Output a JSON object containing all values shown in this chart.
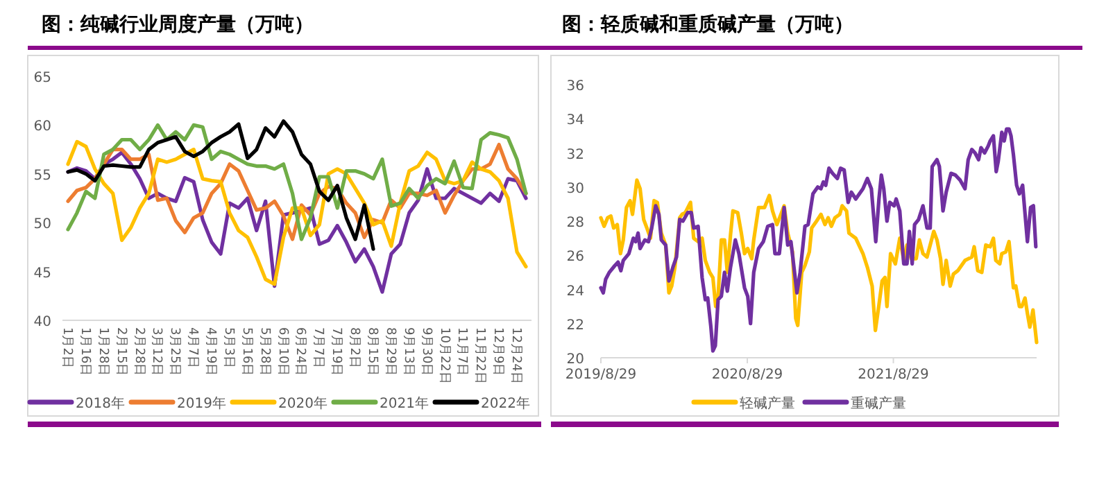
{
  "chart_data": [
    {
      "type": "line",
      "title": "图：纯碱行业周度产量（万吨）",
      "legend": "bottom",
      "ylim": [
        40,
        65
      ],
      "yticks": [
        40,
        45,
        50,
        55,
        60,
        65
      ],
      "categories": [
        "1月2日",
        null,
        "1月16日",
        null,
        "1月28日",
        null,
        "2月15日",
        null,
        "2月28日",
        null,
        "3月12日",
        null,
        "3月25日",
        null,
        "4月7日",
        null,
        "4月19日",
        null,
        "5月3日",
        null,
        "5月16日",
        null,
        "5月28日",
        null,
        "6月10日",
        null,
        "6月24日",
        null,
        "7月7日",
        null,
        "7月19日",
        null,
        "8月2日",
        null,
        "8月15日",
        null,
        "8月29日",
        null,
        "9月13日",
        null,
        "9月30日",
        null,
        "10月22日",
        null,
        "11月7日",
        null,
        "11月22日",
        null,
        "12月9日",
        null,
        "12月24日",
        null
      ],
      "series": [
        {
          "name": "2018年",
          "color": "#7030a0",
          "values": [
            55.2,
            55.6,
            55.3,
            54.5,
            56,
            56.5,
            57.2,
            56,
            54.5,
            52.5,
            53,
            52.5,
            52.2,
            54.6,
            54.2,
            50.3,
            48,
            46.8,
            52,
            51.5,
            52.5,
            49.2,
            52.2,
            43.5,
            50.8,
            51,
            51.2,
            51.5,
            47.8,
            48.2,
            49.7,
            48,
            46,
            47.3,
            45.5,
            42.9,
            46.8,
            47.8,
            51,
            52.3,
            55.5,
            52.5,
            52.5,
            53.5,
            53,
            52.5,
            52,
            53,
            52.2,
            54.5,
            54.3,
            52.5
          ]
        },
        {
          "name": "2019年",
          "color": "#ed7d31",
          "values": [
            52.2,
            53.3,
            53.6,
            54.5,
            56,
            57.5,
            57.5,
            56.5,
            56.5,
            57,
            52.3,
            52.5,
            50.2,
            49,
            50.5,
            51,
            53,
            54,
            56,
            55.3,
            53.3,
            51.3,
            51.5,
            52.2,
            50.7,
            48.3,
            51.8,
            50.8,
            53,
            53.7,
            53.5,
            52,
            51,
            48.5,
            50.3,
            50,
            52.3,
            51.5,
            53,
            53,
            52.8,
            53.3,
            51,
            52.8,
            54.3,
            55.5,
            55.5,
            56,
            58,
            55.5,
            54.5,
            53
          ]
        },
        {
          "name": "2020年",
          "color": "#ffc000",
          "values": [
            56,
            58.3,
            57.8,
            55.5,
            54,
            53,
            48.2,
            49.5,
            51.5,
            53,
            56.5,
            56.2,
            56.5,
            57,
            57.5,
            54.5,
            54.3,
            54.2,
            51,
            49.2,
            48.5,
            46.5,
            44.2,
            43.7,
            48.5,
            51.5,
            51.5,
            48.7,
            49.8,
            55,
            55.5,
            55,
            53.5,
            52,
            49.8,
            50.2,
            47.6,
            52,
            55.3,
            55.8,
            57.2,
            56.5,
            54.3,
            54,
            54.3,
            56.2,
            55.5,
            55.2,
            54.3,
            52.5,
            47,
            45.5
          ]
        },
        {
          "name": "2021年",
          "color": "#70ad47",
          "values": [
            49.3,
            51,
            53.2,
            52.5,
            57,
            57.5,
            58.5,
            58.5,
            57.5,
            58.5,
            60,
            58.5,
            59.3,
            58.5,
            60,
            59.8,
            56.5,
            57.3,
            57,
            56.5,
            56,
            55.8,
            55.8,
            55.5,
            56,
            53,
            48.3,
            50.5,
            54.7,
            54.7,
            51.5,
            55.3,
            55.3,
            55,
            54.5,
            56.5,
            51.7,
            52,
            53.5,
            52.5,
            53.8,
            54.5,
            54,
            56.3,
            53.6,
            53.5,
            58.5,
            59.2,
            59,
            58.7,
            56.5,
            53
          ]
        },
        {
          "name": "2022年",
          "color": "#000000",
          "values": [
            55.2,
            55.4,
            55.0,
            54.3,
            55.8,
            55.9,
            55.8,
            55.7,
            55.7,
            57.5,
            58.2,
            58.5,
            58.8,
            57.3,
            56.8,
            57.3,
            58.2,
            58.8,
            59.3,
            60.1,
            56.6,
            57.5,
            59.7,
            58.8,
            60.4,
            59.3,
            57,
            56,
            53.2,
            52.3,
            53.8,
            50.5,
            48.3,
            51.8,
            47.3,
            null,
            null,
            null,
            null,
            null,
            null,
            null,
            null,
            null,
            null,
            null,
            null,
            null,
            null,
            null,
            null,
            null
          ]
        }
      ]
    },
    {
      "type": "line",
      "title": "图：轻质碱和重质碱产量（万吨）",
      "legend": "bottom",
      "ylim": [
        20,
        36
      ],
      "yticks": [
        20,
        22,
        24,
        26,
        28,
        30,
        32,
        34,
        36
      ],
      "xlim": [
        "2019-08-29",
        "2022-08-22"
      ],
      "xticks": [
        {
          "value": "2019-08-29",
          "label": "2019/8/29"
        },
        {
          "value": "2020-08-29",
          "label": "2020/8/29"
        },
        {
          "value": "2021-08-29",
          "label": "2021/8/29"
        }
      ],
      "series": [
        {
          "name": "轻碱产量",
          "color": "#ffc000",
          "x": [
            "2019-08-29",
            "2019-09-06",
            "2019-09-15",
            "2019-09-23",
            "2019-09-30",
            "2019-10-09",
            "2019-10-17",
            "2019-10-24",
            "2019-11-01",
            "2019-11-10",
            "2019-11-16",
            "2019-11-27",
            "2019-12-05",
            "2019-12-14",
            "2019-12-22",
            "2019-12-31",
            "2020-01-09",
            "2020-01-17",
            "2020-01-27",
            "2020-02-07",
            "2020-02-15",
            "2020-02-22",
            "2020-03-01",
            "2020-03-13",
            "2020-03-19",
            "2020-03-27",
            "2020-04-09",
            "2020-04-17",
            "2020-04-28",
            "2020-05-08",
            "2020-05-16",
            "2020-05-27",
            "2020-06-04",
            "2020-06-11",
            "2020-06-17",
            "2020-06-25",
            "2020-07-03",
            "2020-07-10",
            "2020-07-18",
            "2020-07-24",
            "2020-08-05",
            "2020-08-14",
            "2020-08-22",
            "2020-08-30",
            "2020-09-09",
            "2020-09-14",
            "2020-09-26",
            "2020-10-11",
            "2020-10-23",
            "2020-10-31",
            "2020-11-11",
            "2020-11-21",
            "2020-11-29",
            "2020-12-08",
            "2020-12-20",
            "2020-12-28",
            "2021-01-02",
            "2021-01-12",
            "2021-01-20",
            "2021-01-31",
            "2021-02-06",
            "2021-02-18",
            "2021-03-01",
            "2021-03-11",
            "2021-03-19",
            "2021-03-27",
            "2021-04-05",
            "2021-04-17",
            "2021-04-23",
            "2021-05-04",
            "2021-05-10",
            "2021-05-27",
            "2021-06-14",
            "2021-06-25",
            "2021-07-07",
            "2021-07-15",
            "2021-07-24",
            "2021-08-01",
            "2021-08-08",
            "2021-08-13",
            "2021-08-22",
            "2021-09-03",
            "2021-09-14",
            "2021-09-24",
            "2021-10-02",
            "2021-10-13",
            "2021-10-25",
            "2021-11-02",
            "2021-11-11",
            "2021-11-21",
            "2021-11-29",
            "2021-12-08",
            "2021-12-16",
            "2021-12-25",
            "2021-12-31",
            "2022-01-08",
            "2022-01-18",
            "2022-01-26",
            "2022-02-06",
            "2022-02-24",
            "2022-03-13",
            "2022-03-19",
            "2022-03-28",
            "2022-04-07",
            "2022-04-17",
            "2022-04-28",
            "2022-05-06",
            "2022-05-12",
            "2022-05-22",
            "2022-05-27",
            "2022-06-06",
            "2022-06-14",
            "2022-06-25",
            "2022-07-01",
            "2022-07-10",
            "2022-07-16",
            "2022-07-24",
            "2022-07-30",
            "2022-08-05",
            "2022-08-13",
            "2022-08-22"
          ],
          "values": [
            28.2,
            27.7,
            28.2,
            28.3,
            27.6,
            27.8,
            26.1,
            26.9,
            28.8,
            29.2,
            28.4,
            30.4,
            29.9,
            28.1,
            27.6,
            27.0,
            29.2,
            29.1,
            27.3,
            26.6,
            23.8,
            24.2,
            25.3,
            28.2,
            28.4,
            28.5,
            29.1,
            27.0,
            26.8,
            27.0,
            25.7,
            25.0,
            24.7,
            23.0,
            23.6,
            26.9,
            26.9,
            25.0,
            27.2,
            28.6,
            28.5,
            27.3,
            26.1,
            26.4,
            25.8,
            26.9,
            28.8,
            28.8,
            29.5,
            28.6,
            27.8,
            28.4,
            28.9,
            27.3,
            26.2,
            22.3,
            21.9,
            25.0,
            25.4,
            26.2,
            27.6,
            28.0,
            28.4,
            27.8,
            28.2,
            27.7,
            28.2,
            28.4,
            28.9,
            28.6,
            27.3,
            27.0,
            26.1,
            25.3,
            24.2,
            21.6,
            23.1,
            24.5,
            24.7,
            23.0,
            26.1,
            25.5,
            27.0,
            25.7,
            26.6,
            25.8,
            25.8,
            26.9,
            26.1,
            25.9,
            26.6,
            27.4,
            26.9,
            25.8,
            24.3,
            25.7,
            24.2,
            24.9,
            25.1,
            25.7,
            25.9,
            26.5,
            25.1,
            25.0,
            26.6,
            26.5,
            27.0,
            25.7,
            25.5,
            26.1,
            26.2,
            26.8,
            24.1,
            24.2,
            23.0,
            23.0,
            23.5,
            22.6,
            21.8,
            22.8,
            20.9
          ]
        },
        {
          "name": "重碱产量",
          "color": "#7030a0",
          "x": [
            "2019-08-29",
            "2019-09-04",
            "2019-09-10",
            "2019-09-19",
            "2019-10-03",
            "2019-10-11",
            "2019-10-18",
            "2019-10-24",
            "2019-11-07",
            "2019-11-18",
            "2019-11-24",
            "2019-11-30",
            "2019-12-05",
            "2019-12-17",
            "2019-12-26",
            "2020-01-03",
            "2020-01-13",
            "2020-01-21",
            "2020-01-27",
            "2020-02-07",
            "2020-02-15",
            "2020-02-25",
            "2020-03-05",
            "2020-03-13",
            "2020-03-21",
            "2020-04-02",
            "2020-04-11",
            "2020-04-17",
            "2020-04-28",
            "2020-05-08",
            "2020-05-16",
            "2020-05-22",
            "2020-05-30",
            "2020-06-04",
            "2020-06-10",
            "2020-06-17",
            "2020-06-25",
            "2020-07-03",
            "2020-07-10",
            "2020-07-18",
            "2020-07-30",
            "2020-08-08",
            "2020-08-22",
            "2020-08-30",
            "2020-09-06",
            "2020-09-14",
            "2020-09-26",
            "2020-10-08",
            "2020-10-19",
            "2020-10-31",
            "2020-11-06",
            "2020-11-17",
            "2020-11-29",
            "2020-12-08",
            "2020-12-16",
            "2020-12-31",
            "2021-01-08",
            "2021-01-20",
            "2021-01-28",
            "2021-02-09",
            "2021-02-21",
            "2021-03-01",
            "2021-03-07",
            "2021-03-13",
            "2021-03-21",
            "2021-03-30",
            "2021-04-11",
            "2021-04-19",
            "2021-04-28",
            "2021-05-08",
            "2021-05-16",
            "2021-05-27",
            "2021-06-14",
            "2021-06-25",
            "2021-07-05",
            "2021-07-16",
            "2021-07-24",
            "2021-07-30",
            "2021-08-05",
            "2021-08-13",
            "2021-08-20",
            "2021-08-31",
            "2021-09-05",
            "2021-09-14",
            "2021-09-24",
            "2021-10-02",
            "2021-10-08",
            "2021-10-15",
            "2021-10-21",
            "2021-10-31",
            "2021-11-11",
            "2021-11-21",
            "2021-11-29",
            "2021-12-04",
            "2021-12-16",
            "2021-12-22",
            "2021-12-31",
            "2022-01-08",
            "2022-01-20",
            "2022-01-31",
            "2022-02-12",
            "2022-02-24",
            "2022-03-04",
            "2022-03-13",
            "2022-03-21",
            "2022-03-30",
            "2022-04-05",
            "2022-04-14",
            "2022-04-23",
            "2022-04-28",
            "2022-05-06",
            "2022-05-13",
            "2022-05-18",
            "2022-05-27",
            "2022-06-02",
            "2022-06-08",
            "2022-06-14",
            "2022-06-19",
            "2022-06-25",
            "2022-07-03",
            "2022-07-10",
            "2022-07-18",
            "2022-07-30",
            "2022-08-07",
            "2022-08-14",
            "2022-08-20"
          ],
          "values": [
            24.1,
            23.8,
            24.6,
            25.0,
            25.4,
            25.6,
            25.1,
            25.7,
            26.1,
            27.0,
            26.8,
            27.3,
            26.4,
            26.9,
            26.8,
            27.6,
            28.9,
            28.4,
            26.9,
            26.6,
            24.5,
            25.3,
            25.9,
            28.1,
            28.0,
            28.5,
            28.5,
            27.6,
            27.7,
            24.7,
            23.4,
            23.5,
            21.8,
            20.4,
            20.7,
            23.4,
            23.6,
            25.0,
            23.9,
            25.3,
            26.9,
            26.1,
            24.1,
            23.6,
            22.0,
            25.0,
            26.4,
            26.8,
            27.7,
            27.8,
            26.1,
            26.1,
            28.8,
            26.6,
            26.8,
            23.8,
            25.0,
            27.7,
            27.8,
            29.6,
            30.0,
            29.9,
            30.3,
            30.1,
            31.1,
            30.8,
            30.5,
            31.1,
            31.0,
            29.1,
            29.7,
            29.3,
            29.9,
            30.5,
            29.9,
            26.8,
            29.3,
            30.7,
            29.9,
            28.0,
            29.1,
            28.9,
            29.3,
            28.6,
            25.5,
            25.5,
            27.4,
            25.5,
            27.8,
            28.1,
            28.9,
            27.6,
            27.6,
            31.2,
            31.6,
            31.2,
            28.6,
            29.7,
            30.8,
            30.7,
            30.4,
            29.9,
            31.6,
            32.2,
            32.0,
            31.6,
            32.3,
            32.0,
            32.4,
            32.7,
            33.0,
            30.9,
            31.5,
            33.2,
            32.7,
            33.4,
            33.4,
            33.0,
            31.9,
            30.1,
            29.6,
            30.1,
            26.8,
            28.8,
            28.9,
            26.5
          ]
        }
      ]
    }
  ]
}
